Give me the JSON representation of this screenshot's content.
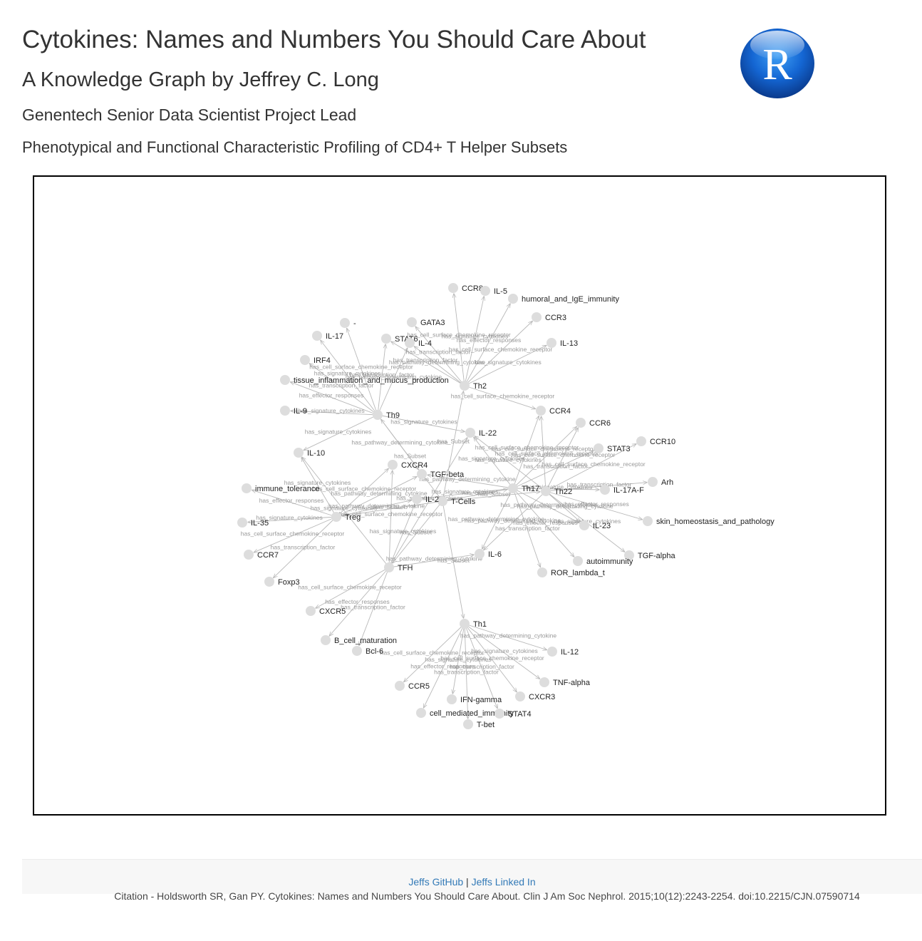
{
  "header": {
    "title": "Cytokines: Names and Numbers You Should Care About",
    "subtitle": "A Knowledge Graph by Jeffrey C. Long",
    "author_role": "Genentech Senior Data Scientist Project Lead",
    "section_title": "Phenotypical and Functional Characteristic Profiling of CD4+ T Helper Subsets",
    "logo_letter": "R"
  },
  "graph": {
    "node_color": "#dddddd",
    "edge_color": "#b8b8b8",
    "edge_label_color": "#999999",
    "nodes": [
      {
        "id": "Th2",
        "label": "Th2"
      },
      {
        "id": "Th9",
        "label": "Th9"
      },
      {
        "id": "Th17",
        "label": "Th17"
      },
      {
        "id": "Th22",
        "label": "Th22"
      },
      {
        "id": "Treg",
        "label": "Treg"
      },
      {
        "id": "TFH",
        "label": "TFH"
      },
      {
        "id": "Th1",
        "label": "Th1"
      },
      {
        "id": "TCells",
        "label": "T-Cells"
      },
      {
        "id": "CCR8",
        "label": "CCR8"
      },
      {
        "id": "IL5",
        "label": "IL-5"
      },
      {
        "id": "humoral",
        "label": "humoral_and_IgE_immunity"
      },
      {
        "id": "CCR3",
        "label": "CCR3"
      },
      {
        "id": "GATA3",
        "label": "GATA3"
      },
      {
        "id": "dash",
        "label": "-"
      },
      {
        "id": "IL17",
        "label": "IL-17"
      },
      {
        "id": "STAT6",
        "label": "STAT6"
      },
      {
        "id": "IL4",
        "label": "IL-4"
      },
      {
        "id": "IL13",
        "label": "IL-13"
      },
      {
        "id": "IRF4",
        "label": "IRF4"
      },
      {
        "id": "tissue",
        "label": "tissue_inflammation_and_mucus_production"
      },
      {
        "id": "IL9",
        "label": "IL-9"
      },
      {
        "id": "CCR4",
        "label": "CCR4"
      },
      {
        "id": "CCR6",
        "label": "CCR6"
      },
      {
        "id": "IL22",
        "label": "IL-22"
      },
      {
        "id": "CCR10",
        "label": "CCR10"
      },
      {
        "id": "STAT3",
        "label": "STAT3"
      },
      {
        "id": "IL10",
        "label": "IL-10"
      },
      {
        "id": "CXCR4",
        "label": "CXCR4"
      },
      {
        "id": "TGFbeta",
        "label": "TGF-beta"
      },
      {
        "id": "Arh",
        "label": "Arh"
      },
      {
        "id": "IL17AF",
        "label": "IL-17A-F"
      },
      {
        "id": "immune_tol",
        "label": "immune_tolerance"
      },
      {
        "id": "IL2",
        "label": "IL-2"
      },
      {
        "id": "skin",
        "label": "skin_homeostasis_and_pathology"
      },
      {
        "id": "IL35",
        "label": "IL-35"
      },
      {
        "id": "IL23",
        "label": "IL-23"
      },
      {
        "id": "CCR7",
        "label": "CCR7"
      },
      {
        "id": "IL6",
        "label": "IL-6"
      },
      {
        "id": "TGFalpha",
        "label": "TGF-alpha"
      },
      {
        "id": "autoimm",
        "label": "autoimmunity"
      },
      {
        "id": "ROR",
        "label": "ROR_lambda_t"
      },
      {
        "id": "Foxp3",
        "label": "Foxp3"
      },
      {
        "id": "CXCR5",
        "label": "CXCR5"
      },
      {
        "id": "Bcell",
        "label": "B_cell_maturation"
      },
      {
        "id": "Bcl6",
        "label": "Bcl-6"
      },
      {
        "id": "IL12",
        "label": "IL-12"
      },
      {
        "id": "TNFalpha",
        "label": "TNF-alpha"
      },
      {
        "id": "CCR5",
        "label": "CCR5"
      },
      {
        "id": "IFNg",
        "label": "IFN-gamma"
      },
      {
        "id": "CXCR3",
        "label": "CXCR3"
      },
      {
        "id": "cellmed",
        "label": "cell_mediated_immunity"
      },
      {
        "id": "STAT4",
        "label": "STAT4"
      },
      {
        "id": "Tbet",
        "label": "T-bet"
      }
    ],
    "edges": [
      {
        "from": "Th2",
        "to": "CCR8",
        "label": "has_cell_surface_chemokine_receptor"
      },
      {
        "from": "Th2",
        "to": "IL5",
        "label": "has_signature_cytokines"
      },
      {
        "from": "Th2",
        "to": "humoral",
        "label": "has_effector_responses"
      },
      {
        "from": "Th2",
        "to": "CCR3",
        "label": "has_cell_surface_chemokine_receptor"
      },
      {
        "from": "Th2",
        "to": "GATA3",
        "label": "has_transcription_factor"
      },
      {
        "from": "Th2",
        "to": "STAT6",
        "label": "has_transcription_factor"
      },
      {
        "from": "Th2",
        "to": "IL4",
        "label": "has_pathway_determining_cytokine"
      },
      {
        "from": "Th2",
        "to": "IL13",
        "label": "has_signature_cytokines"
      },
      {
        "from": "Th2",
        "to": "CCR4",
        "label": "has_cell_surface_chemokine_receptor"
      },
      {
        "from": "Th9",
        "to": "dash",
        "label": "has_cell_surface_chemokine_receptor"
      },
      {
        "from": "Th9",
        "to": "IL17",
        "label": "has_signature_cytokines"
      },
      {
        "from": "Th9",
        "to": "IRF4",
        "label": "has_transcription_factor"
      },
      {
        "from": "Th9",
        "to": "tissue",
        "label": "has_effector_responses"
      },
      {
        "from": "Th9",
        "to": "IL9",
        "label": "has_signature_cytokines"
      },
      {
        "from": "Th9",
        "to": "IL10",
        "label": "has_signature_cytokines"
      },
      {
        "from": "Th9",
        "to": "IL4",
        "label": "has_pathway_determining_cytokine"
      },
      {
        "from": "Th9",
        "to": "STAT6",
        "label": "has_transcription_factor"
      },
      {
        "from": "Th9",
        "to": "TGFbeta",
        "label": "has_pathway_determining_cytokine"
      },
      {
        "from": "Th9",
        "to": "IL22",
        "label": "has_signature_cytokines"
      },
      {
        "from": "Th17",
        "to": "CCR6",
        "label": "has_cell_surface_chemokine_receptor"
      },
      {
        "from": "Th17",
        "to": "CCR4",
        "label": "has_cell_surface_chemokine_receptor"
      },
      {
        "from": "Th17",
        "to": "STAT3",
        "label": "has_transcription_factor"
      },
      {
        "from": "Th17",
        "to": "IL17AF",
        "label": "has_signature_cytokines"
      },
      {
        "from": "Th17",
        "to": "IL22",
        "label": "has_signature_cytokines"
      },
      {
        "from": "Th17",
        "to": "IL6",
        "label": "has_pathway_determining_cytokine"
      },
      {
        "from": "Th17",
        "to": "IL23",
        "label": "has_pathway_determining_cytokine"
      },
      {
        "from": "Th17",
        "to": "ROR",
        "label": "has_transcription_factor"
      },
      {
        "from": "Th17",
        "to": "autoimm",
        "label": "has_effector_responses"
      },
      {
        "from": "Th17",
        "to": "TGFbeta",
        "label": "has_pathway_determining_cytokine"
      },
      {
        "from": "Th17",
        "to": "IL2",
        "label": "has_signature_cytokines"
      },
      {
        "from": "Th22",
        "to": "CCR10",
        "label": "has_cell_surface_chemokine_receptor"
      },
      {
        "from": "Th22",
        "to": "CCR6",
        "label": "has_cell_surface_chemokine_receptor"
      },
      {
        "from": "Th22",
        "to": "CCR4",
        "label": "has_cell_surface_chemokine_receptor"
      },
      {
        "from": "Th22",
        "to": "Arh",
        "label": "has_transcription_factor"
      },
      {
        "from": "Th22",
        "to": "IL22",
        "label": "has_signature_cytokines"
      },
      {
        "from": "Th22",
        "to": "skin",
        "label": "has_effector_responses"
      },
      {
        "from": "Th22",
        "to": "TGFalpha",
        "label": "has_signature_cytokines"
      },
      {
        "from": "Th22",
        "to": "IL23",
        "label": "has_pathway_determining_cytokine"
      },
      {
        "from": "Th22",
        "to": "IL6",
        "label": "has_pathway_determining_cytokine"
      },
      {
        "from": "Treg",
        "to": "immune_tol",
        "label": "has_effector_responses"
      },
      {
        "from": "Treg",
        "to": "IL10",
        "label": "has_signature_cytokines"
      },
      {
        "from": "Treg",
        "to": "IL35",
        "label": "has_signature_cytokines"
      },
      {
        "from": "Treg",
        "to": "CCR7",
        "label": "has_cell_surface_chemokine_receptor"
      },
      {
        "from": "Treg",
        "to": "Foxp3",
        "label": "has_transcription_factor"
      },
      {
        "from": "Treg",
        "to": "TGFbeta",
        "label": "has_pathway_determining_cytokine"
      },
      {
        "from": "Treg",
        "to": "CXCR4",
        "label": "has_cell_surface_chemokine_receptor"
      },
      {
        "from": "Treg",
        "to": "IL2",
        "label": "has_pathway_determining_cytokine"
      },
      {
        "from": "TFH",
        "to": "CXCR5",
        "label": "has_cell_surface_chemokine_receptor"
      },
      {
        "from": "TFH",
        "to": "Bcell",
        "label": "has_effector_responses"
      },
      {
        "from": "TFH",
        "to": "Bcl6",
        "label": "has_transcription_factor"
      },
      {
        "from": "TFH",
        "to": "IL6",
        "label": "has_pathway_determining_cytokine"
      },
      {
        "from": "TFH",
        "to": "CXCR4",
        "label": "has_cell_surface_chemokine_receptor"
      },
      {
        "from": "TFH",
        "to": "IL2",
        "label": "has_signature_cytokines"
      },
      {
        "from": "TFH",
        "to": "IL22",
        "label": "has_signature_cytokines"
      },
      {
        "from": "TFH",
        "to": "IL10",
        "label": "has_signature_cytokines"
      },
      {
        "from": "Th1",
        "to": "IL12",
        "label": "has_pathway_determining_cytokine"
      },
      {
        "from": "Th1",
        "to": "TNFalpha",
        "label": "has_signature_cytokines"
      },
      {
        "from": "Th1",
        "to": "CCR5",
        "label": "has_cell_surface_chemokine_receptor"
      },
      {
        "from": "Th1",
        "to": "IFNg",
        "label": "has_signature_cytokines"
      },
      {
        "from": "Th1",
        "to": "CXCR3",
        "label": "has_cell_surface_chemokine_receptor"
      },
      {
        "from": "Th1",
        "to": "cellmed",
        "label": "has_effector_responses"
      },
      {
        "from": "Th1",
        "to": "STAT4",
        "label": "has_transcription_factor"
      },
      {
        "from": "Th1",
        "to": "Tbet",
        "label": "has_transcription_factor"
      },
      {
        "from": "TCells",
        "to": "Th2",
        "label": "has_Subset"
      },
      {
        "from": "TCells",
        "to": "Th9",
        "label": "has_Subset"
      },
      {
        "from": "TCells",
        "to": "Th17",
        "label": "has_Subset"
      },
      {
        "from": "TCells",
        "to": "Th22",
        "label": "has_Subset"
      },
      {
        "from": "TCells",
        "to": "Treg",
        "label": "has_Subset"
      },
      {
        "from": "TCells",
        "to": "TFH",
        "label": "has_Subset"
      },
      {
        "from": "TCells",
        "to": "Th1",
        "label": "has_Subset"
      }
    ]
  },
  "footer": {
    "github_label": "Jeffs GitHub",
    "separator": "|",
    "linkedin_label": "Jeffs Linked In",
    "citation": "Citation - Holdsworth SR, Gan PY. Cytokines: Names and Numbers You Should Care About. Clin J Am Soc Nephrol. 2015;10(12):2243-2254. doi:10.2215/CJN.07590714"
  }
}
